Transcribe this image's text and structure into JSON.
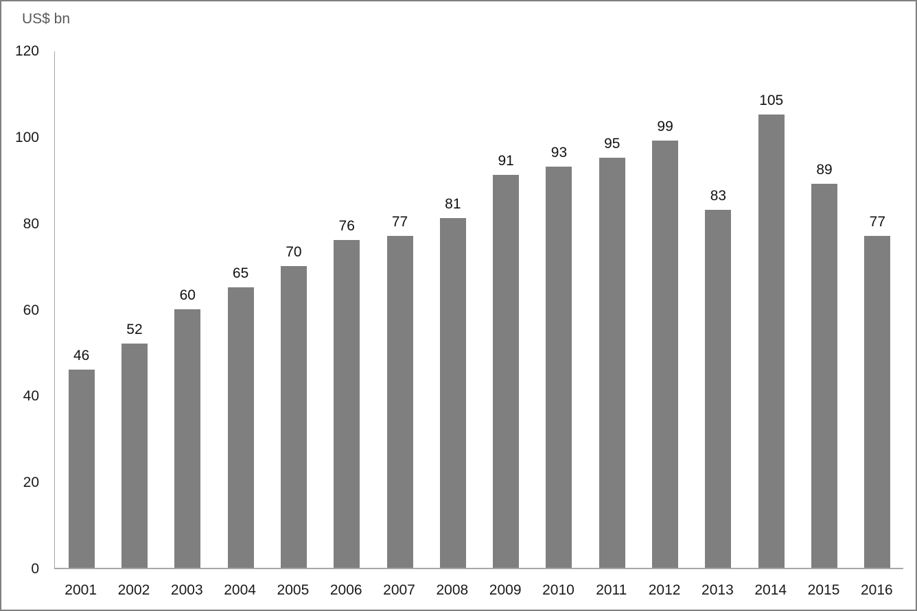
{
  "chart_data": {
    "type": "bar",
    "title": "",
    "unit_label": "US$ bn",
    "categories": [
      "2001",
      "2002",
      "2003",
      "2004",
      "2005",
      "2006",
      "2007",
      "2008",
      "2009",
      "2010",
      "2011",
      "2012",
      "2013",
      "2014",
      "2015",
      "2016"
    ],
    "values": [
      46,
      52,
      60,
      65,
      70,
      76,
      77,
      81,
      91,
      93,
      95,
      99,
      83,
      105,
      89,
      77
    ],
    "data_labels_shown": true,
    "xlabel": "",
    "ylabel": "US$ bn",
    "ylim": [
      0,
      120
    ],
    "yticks": [
      0,
      20,
      40,
      60,
      80,
      100,
      120
    ],
    "grid": false,
    "legend": "none",
    "bar_color": "#7f7f7f",
    "axis_line_color": "#a6a6a6",
    "text_color": "#1a1a1a",
    "unit_label_color": "#595959",
    "frame_border_color": "#7f7f7f"
  }
}
